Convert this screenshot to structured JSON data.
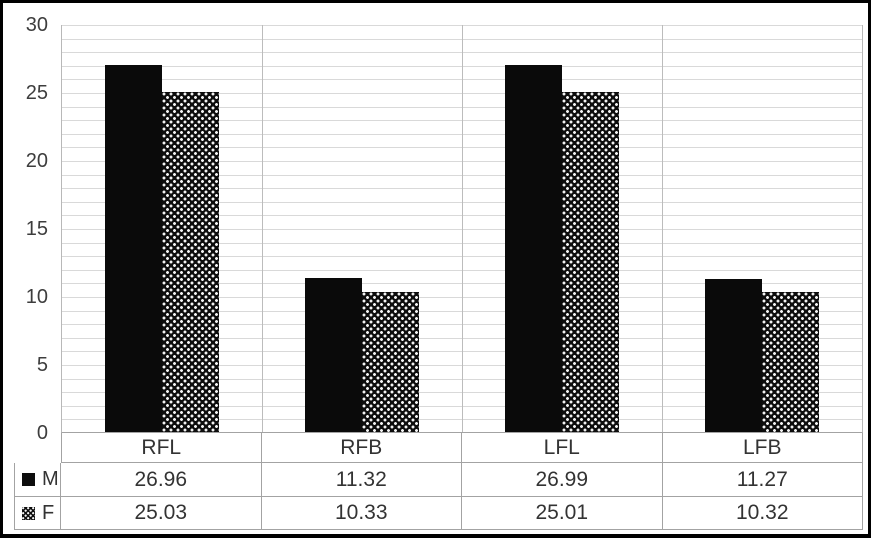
{
  "chart_data": {
    "type": "bar",
    "title": "",
    "xlabel": "",
    "ylabel": "",
    "categories": [
      "RFL",
      "RFB",
      "LFL",
      "LFB"
    ],
    "series": [
      {
        "name": "M",
        "pattern": "solid",
        "color": "#0a0a0a",
        "values": [
          26.96,
          11.32,
          26.99,
          11.27
        ]
      },
      {
        "name": "F",
        "pattern": "dotted-grid",
        "color": "#0d0d0d",
        "values": [
          25.03,
          10.33,
          25.01,
          10.32
        ]
      }
    ],
    "ylim": [
      0,
      30
    ],
    "ytick_interval": 5,
    "minor_gridline_interval": 1,
    "ytick_labels": [
      "30",
      "25",
      "20",
      "15",
      "10",
      "5",
      "0"
    ],
    "grid": true,
    "legend_position": "data-table-left-column"
  },
  "colors": {
    "figure_border": "#000000",
    "gridline": "#d9d9d9",
    "category_separator": "#bcbcbc",
    "axis_line": "#a3a3a3",
    "table_border": "#a3a3a3",
    "text": "#333333",
    "bar_fill": "#0a0a0a"
  }
}
